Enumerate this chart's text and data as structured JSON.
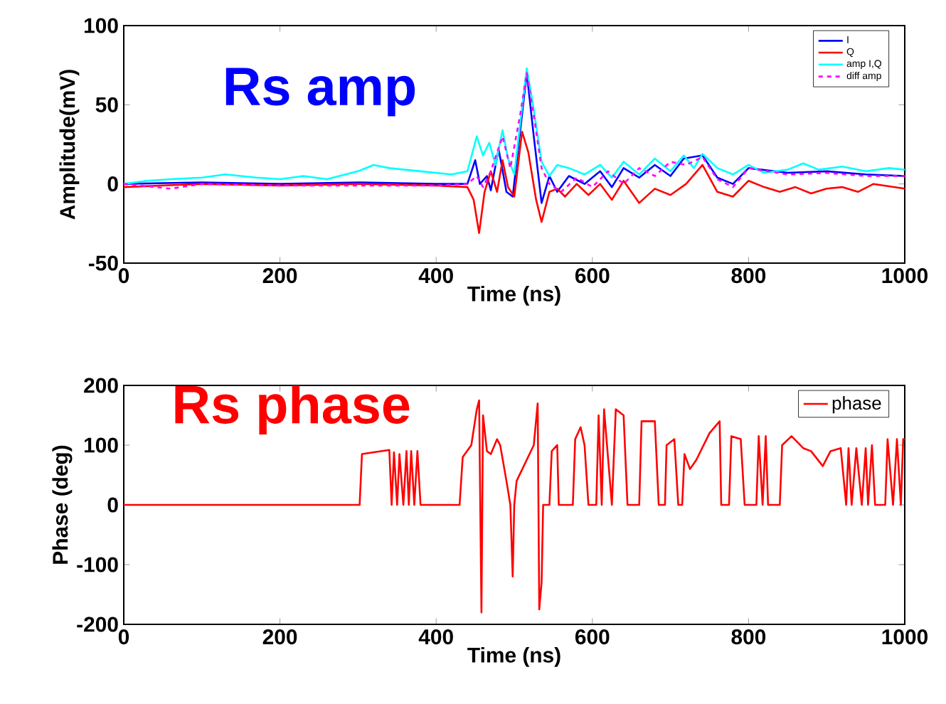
{
  "chart_data": [
    {
      "type": "line",
      "title": "Rs  amp",
      "xlabel": "Time (ns)",
      "ylabel": "Amplitude(mV)",
      "xlim": [
        0,
        1000
      ],
      "ylim": [
        -50,
        100
      ],
      "xticks": [
        0,
        200,
        400,
        600,
        800,
        1000
      ],
      "yticks": [
        -50,
        0,
        50,
        100
      ],
      "legend": "top right",
      "series": [
        {
          "name": "I",
          "color": "#0000ff",
          "x": [
            0,
            100,
            200,
            300,
            400,
            440,
            450,
            456,
            465,
            470,
            480,
            490,
            498,
            508,
            516,
            525,
            535,
            545,
            555,
            570,
            590,
            610,
            625,
            640,
            660,
            680,
            700,
            717,
            741,
            760,
            780,
            800,
            850,
            900,
            950,
            1000
          ],
          "values": [
            0,
            1,
            0,
            1,
            0,
            0,
            15,
            0,
            5,
            -4,
            22,
            -5,
            -8,
            null,
            70,
            30,
            -12,
            5,
            -5,
            5,
            0,
            8,
            -2,
            10,
            4,
            12,
            5,
            16,
            18,
            4,
            0,
            10,
            7,
            8,
            6,
            5
          ]
        },
        {
          "name": "Q",
          "color": "#ff0000",
          "x": [
            0,
            100,
            200,
            300,
            400,
            440,
            448,
            455,
            462,
            470,
            478,
            485,
            492,
            500,
            510,
            518,
            528,
            535,
            545,
            555,
            565,
            580,
            595,
            610,
            625,
            640,
            660,
            680,
            700,
            720,
            741,
            760,
            780,
            800,
            820,
            840,
            860,
            880,
            900,
            920,
            940,
            960,
            1000
          ],
          "values": [
            -2,
            0,
            -1,
            0,
            -1,
            -2,
            -10,
            -31,
            -5,
            8,
            -5,
            15,
            -2,
            -8,
            33,
            20,
            -10,
            -24,
            -5,
            -3,
            -8,
            0,
            -7,
            0,
            -10,
            2,
            -12,
            -3,
            -7,
            0,
            12,
            -5,
            -8,
            2,
            -2,
            -5,
            -2,
            -6,
            -3,
            -2,
            -5,
            0,
            -3
          ]
        },
        {
          "name": "amp I,Q",
          "color": "#00ffff",
          "x": [
            0,
            30,
            60,
            100,
            130,
            170,
            200,
            230,
            260,
            300,
            320,
            340,
            380,
            420,
            440,
            452,
            460,
            468,
            476,
            485,
            492,
            500,
            508,
            516,
            524,
            535,
            545,
            555,
            570,
            590,
            610,
            625,
            640,
            660,
            680,
            700,
            717,
            730,
            741,
            760,
            780,
            800,
            820,
            850,
            870,
            890,
            920,
            950,
            980,
            1000
          ],
          "values": [
            0,
            2,
            3,
            4,
            6,
            4,
            3,
            5,
            3,
            8,
            12,
            10,
            8,
            6,
            8,
            30,
            18,
            26,
            12,
            34,
            16,
            6,
            40,
            73,
            50,
            14,
            5,
            12,
            10,
            6,
            12,
            4,
            14,
            6,
            16,
            8,
            18,
            10,
            19,
            10,
            6,
            12,
            7,
            9,
            13,
            9,
            11,
            8,
            10,
            9
          ]
        },
        {
          "name": "diff amp",
          "color": "#ff00ff",
          "line_style": "dashed",
          "x": [
            0,
            60,
            100,
            200,
            300,
            400,
            440,
            452,
            460,
            470,
            485,
            495,
            508,
            516,
            526,
            535,
            545,
            560,
            580,
            600,
            620,
            640,
            660,
            680,
            700,
            720,
            741,
            760,
            780,
            800,
            850,
            900,
            950,
            1000
          ],
          "values": [
            0,
            -3,
            0,
            -1,
            -1,
            -1,
            0,
            5,
            -2,
            8,
            30,
            10,
            45,
            70,
            40,
            10,
            0,
            -5,
            4,
            -2,
            8,
            0,
            10,
            5,
            14,
            12,
            17,
            3,
            -2,
            10,
            6,
            7,
            5,
            5
          ]
        }
      ]
    },
    {
      "type": "line",
      "title": "Rs  phase",
      "xlabel": "Time (ns)",
      "ylabel": "Phase (deg)",
      "xlim": [
        0,
        1000
      ],
      "ylim": [
        -200,
        200
      ],
      "xticks": [
        0,
        200,
        400,
        600,
        800,
        1000
      ],
      "yticks": [
        -200,
        -100,
        0,
        100,
        200
      ],
      "legend": "top right",
      "series": [
        {
          "name": "phase",
          "color": "#ff0000",
          "x": [
            0,
            302,
            305,
            340,
            343,
            346,
            350,
            353,
            358,
            362,
            365,
            368,
            372,
            376,
            380,
            430,
            434,
            445,
            452,
            455,
            458,
            460,
            465,
            470,
            478,
            482,
            490,
            495,
            498,
            500,
            503,
            525,
            530,
            532,
            535,
            537,
            545,
            548,
            555,
            557,
            575,
            578,
            585,
            590,
            595,
            605,
            608,
            612,
            615,
            620,
            625,
            630,
            640,
            645,
            660,
            663,
            680,
            685,
            693,
            695,
            705,
            710,
            715,
            718,
            725,
            733,
            750,
            763,
            765,
            775,
            778,
            790,
            795,
            810,
            813,
            818,
            822,
            825,
            840,
            843,
            855,
            870,
            880,
            895,
            905,
            918,
            925,
            928,
            932,
            938,
            945,
            950,
            953,
            958,
            962,
            975,
            978,
            985,
            990,
            995,
            998,
            1000
          ],
          "values": [
            0,
            0,
            85,
            92,
            0,
            88,
            0,
            85,
            0,
            90,
            0,
            90,
            0,
            90,
            0,
            0,
            80,
            100,
            160,
            175,
            -180,
            150,
            90,
            85,
            110,
            100,
            40,
            0,
            -120,
            0,
            40,
            100,
            170,
            -175,
            -130,
            0,
            0,
            90,
            100,
            0,
            0,
            110,
            130,
            100,
            0,
            0,
            150,
            0,
            160,
            80,
            0,
            160,
            150,
            0,
            0,
            140,
            140,
            0,
            0,
            100,
            110,
            0,
            0,
            85,
            60,
            75,
            120,
            140,
            0,
            0,
            115,
            110,
            0,
            0,
            115,
            0,
            115,
            0,
            0,
            100,
            115,
            95,
            90,
            65,
            90,
            95,
            0,
            95,
            0,
            95,
            0,
            95,
            0,
            100,
            0,
            0,
            110,
            0,
            110,
            0,
            110,
            110
          ]
        }
      ]
    }
  ]
}
